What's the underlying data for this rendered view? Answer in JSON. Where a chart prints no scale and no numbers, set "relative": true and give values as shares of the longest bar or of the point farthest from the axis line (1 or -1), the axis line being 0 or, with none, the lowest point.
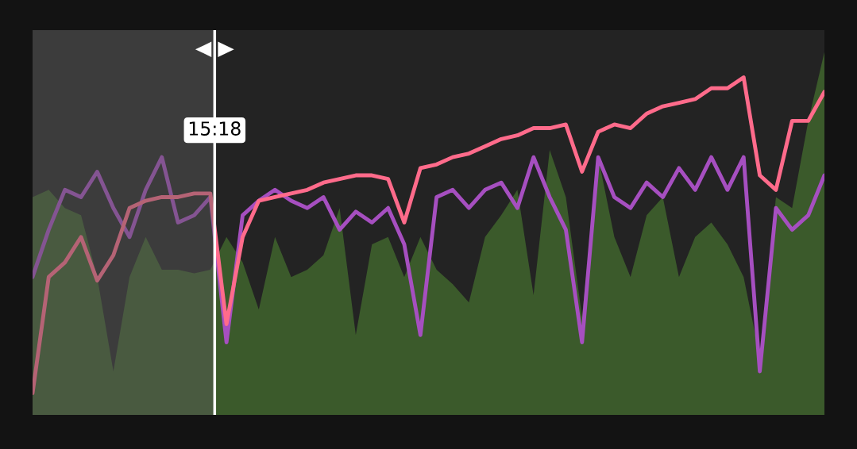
{
  "chart_data": {
    "type": "line",
    "relative": true,
    "categories": [
      null,
      null,
      null,
      null,
      null,
      null,
      null,
      null,
      null,
      null,
      null,
      null,
      null,
      null,
      null,
      null,
      null,
      null,
      null,
      null,
      null,
      null,
      null,
      null,
      null,
      null,
      null,
      null,
      null,
      null,
      null,
      null,
      null,
      null,
      null,
      null,
      null,
      null,
      null,
      null,
      null,
      null,
      null,
      null,
      null,
      null,
      null,
      null,
      null,
      null
    ],
    "series": [
      {
        "type": "area",
        "color": "#3b5a2b",
        "values": [
          0.6,
          0.62,
          0.57,
          0.55,
          0.38,
          0.12,
          0.38,
          0.49,
          0.4,
          0.4,
          0.39,
          0.4,
          0.49,
          0.42,
          0.29,
          0.49,
          0.38,
          0.4,
          0.44,
          0.57,
          0.22,
          0.47,
          0.49,
          0.38,
          0.49,
          0.4,
          0.36,
          0.31,
          0.49,
          0.55,
          0.62,
          0.33,
          0.73,
          0.6,
          0.27,
          0.71,
          0.49,
          0.38,
          0.55,
          0.6,
          0.38,
          0.49,
          0.53,
          0.47,
          0.38,
          0.16,
          0.6,
          0.57,
          0.81,
          1.0
        ]
      },
      {
        "color": "#a64fc0",
        "values": [
          0.38,
          0.51,
          0.62,
          0.6,
          0.67,
          0.57,
          0.49,
          0.62,
          0.71,
          0.53,
          0.55,
          0.6,
          0.2,
          0.55,
          0.59,
          0.62,
          0.59,
          0.57,
          0.6,
          0.51,
          0.56,
          0.53,
          0.57,
          0.47,
          0.22,
          0.6,
          0.62,
          0.57,
          0.62,
          0.64,
          0.57,
          0.71,
          0.6,
          0.51,
          0.2,
          0.71,
          0.6,
          0.57,
          0.64,
          0.6,
          0.68,
          0.62,
          0.71,
          0.62,
          0.71,
          0.12,
          0.57,
          0.51,
          0.55,
          0.66
        ]
      },
      {
        "color": "#ff6b8b",
        "values": [
          0.06,
          0.38,
          0.42,
          0.49,
          0.37,
          0.44,
          0.57,
          0.59,
          0.6,
          0.6,
          0.61,
          0.61,
          0.25,
          0.49,
          0.59,
          0.6,
          0.61,
          0.62,
          0.64,
          0.65,
          0.66,
          0.66,
          0.65,
          0.53,
          0.68,
          0.69,
          0.71,
          0.72,
          0.74,
          0.76,
          0.77,
          0.79,
          0.79,
          0.8,
          0.67,
          0.78,
          0.8,
          0.79,
          0.83,
          0.85,
          0.86,
          0.87,
          0.9,
          0.9,
          0.93,
          0.66,
          0.62,
          0.81,
          0.81,
          0.89
        ]
      }
    ],
    "annotations": [
      "15:18"
    ]
  }
}
